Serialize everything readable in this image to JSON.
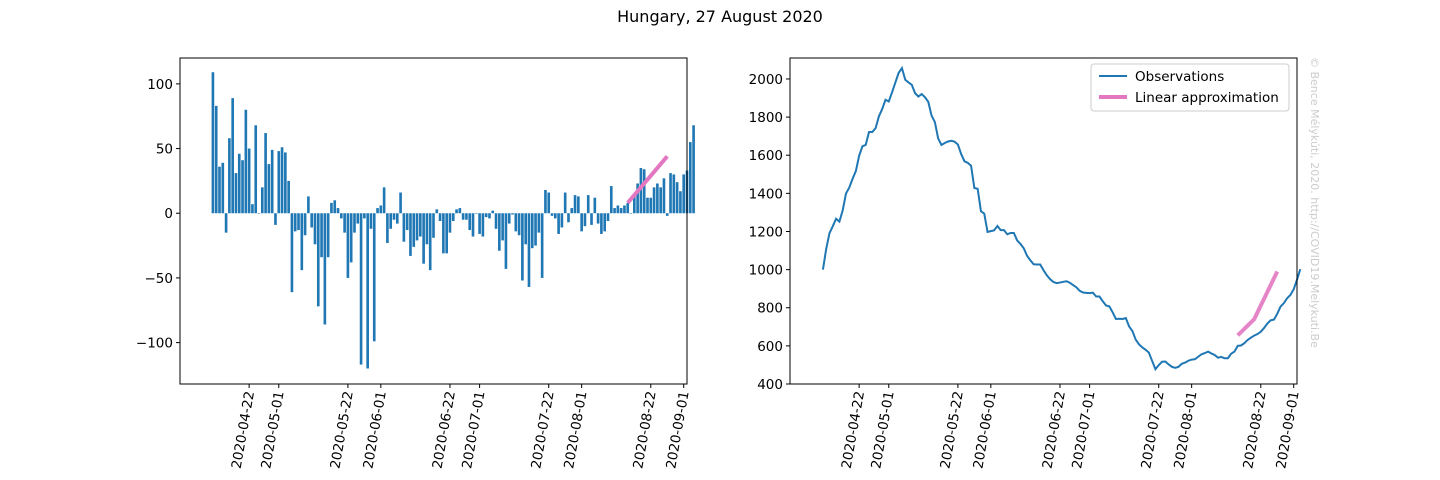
{
  "figure": {
    "title": "Hungary, 27 August 2020",
    "credit": "© Bence Mélykúti, 2020. http://COVID19.Melykuti.Be"
  },
  "colors": {
    "bar": "#1f77b4",
    "observations": "#1f77b4",
    "approximation": "#e377c2"
  },
  "chart_data": [
    {
      "type": "bar",
      "title": "",
      "xlabel": "",
      "ylabel": "",
      "start_date": "2020-04-11",
      "end_date": "2020-08-27",
      "xlim": [
        "2020-04-01",
        "2020-09-02"
      ],
      "ylim": [
        -132,
        120
      ],
      "yticks": [
        -100,
        -50,
        0,
        50,
        100
      ],
      "xticks": [
        "2020-04-22",
        "2020-05-01",
        "2020-05-22",
        "2020-06-01",
        "2020-06-22",
        "2020-07-01",
        "2020-07-22",
        "2020-08-01",
        "2020-08-22",
        "2020-09-01"
      ],
      "grid": false,
      "values": [
        109,
        83,
        36,
        39,
        -15,
        58,
        89,
        31,
        46,
        41,
        80,
        50,
        7,
        68,
        0,
        20,
        62,
        38,
        49,
        -9,
        48,
        51,
        47,
        25,
        -61,
        -14,
        -13,
        -44,
        -17,
        13,
        -11,
        -24,
        -72,
        -34,
        -86,
        -34,
        8,
        10,
        4,
        -4,
        -15,
        -50,
        -38,
        -15,
        -8,
        -117,
        -4,
        -120,
        -12,
        -99,
        4,
        6,
        20,
        -23,
        -12,
        -5,
        -8,
        16,
        -22,
        -13,
        -33,
        -26,
        -21,
        -18,
        -39,
        -24,
        -44,
        -19,
        3,
        -6,
        -31,
        -31,
        -15,
        -6,
        3,
        4,
        -5,
        -5,
        -13,
        -18,
        0,
        -16,
        -18,
        -3,
        -4,
        2,
        -12,
        -29,
        -21,
        -43,
        -8,
        -1,
        -14,
        -17,
        -52,
        -24,
        -57,
        -27,
        -25,
        -15,
        -50,
        18,
        16,
        -2,
        -4,
        -16,
        -11,
        16,
        -7,
        4,
        14,
        13,
        -14,
        -10,
        14,
        -9,
        12,
        -8,
        -16,
        -14,
        -6,
        21,
        4,
        6,
        4,
        6,
        8,
        0,
        14,
        23,
        35,
        34,
        12,
        12,
        20,
        23,
        20,
        27,
        -2,
        31,
        30,
        24,
        17,
        30,
        33,
        55,
        68
      ],
      "linear_approximation": {
        "x": [
          "2020-08-15",
          "2020-08-27"
        ],
        "y": [
          8,
          44
        ]
      }
    },
    {
      "type": "line",
      "title": "",
      "xlabel": "",
      "ylabel": "",
      "start_date": "2020-04-11",
      "end_date": "2020-08-27",
      "xlim": [
        "2020-04-01",
        "2020-09-02"
      ],
      "ylim": [
        400,
        2110
      ],
      "yticks": [
        400,
        600,
        800,
        1000,
        1200,
        1400,
        1600,
        1800,
        2000
      ],
      "xticks": [
        "2020-04-22",
        "2020-05-01",
        "2020-05-22",
        "2020-06-01",
        "2020-06-22",
        "2020-07-01",
        "2020-07-22",
        "2020-08-01",
        "2020-08-22",
        "2020-09-01"
      ],
      "grid": false,
      "legend": {
        "position": "top-right",
        "entries": [
          "Observations",
          "Linear approximation"
        ]
      },
      "series": [
        {
          "name": "Observations",
          "values": [
            1000,
            1109,
            1192,
            1228,
            1267,
            1252,
            1310,
            1399,
            1430,
            1476,
            1517,
            1597,
            1647,
            1654,
            1722,
            1722,
            1742,
            1804,
            1842,
            1891,
            1882,
            1930,
            1981,
            2032,
            2057,
            1996,
            1982,
            1969,
            1925,
            1908,
            1921,
            1904,
            1880,
            1808,
            1774,
            1688,
            1654,
            1664,
            1672,
            1676,
            1671,
            1656,
            1606,
            1568,
            1560,
            1545,
            1428,
            1424,
            1306,
            1294,
            1198,
            1202,
            1206,
            1229,
            1207,
            1207,
            1185,
            1192,
            1192,
            1153,
            1135,
            1112,
            1073,
            1049,
            1028,
            1027,
            1027,
            997,
            970,
            950,
            935,
            929,
            932,
            936,
            939,
            931,
            919,
            907,
            889,
            880,
            878,
            877,
            879,
            859,
            859,
            834,
            812,
            807,
            776,
            741,
            742,
            741,
            746,
            702,
            678,
            633,
            608,
            592,
            580,
            565,
            521,
            478,
            499,
            517,
            518,
            503,
            490,
            485,
            490,
            506,
            512,
            522,
            528,
            530,
            543,
            556,
            562,
            570,
            560,
            552,
            538,
            542,
            535,
            535,
            559,
            570,
            600,
            602,
            614,
            631,
            643,
            654,
            662,
            674,
            694,
            717,
            734,
            738,
            768,
            806,
            824,
            850,
            867,
            897,
            947,
            1002
          ],
          "approximation": {
            "x": [
              "2020-08-15",
              "2020-08-20",
              "2020-08-27"
            ],
            "y": [
              655,
              740,
              990
            ]
          }
        }
      ]
    }
  ]
}
